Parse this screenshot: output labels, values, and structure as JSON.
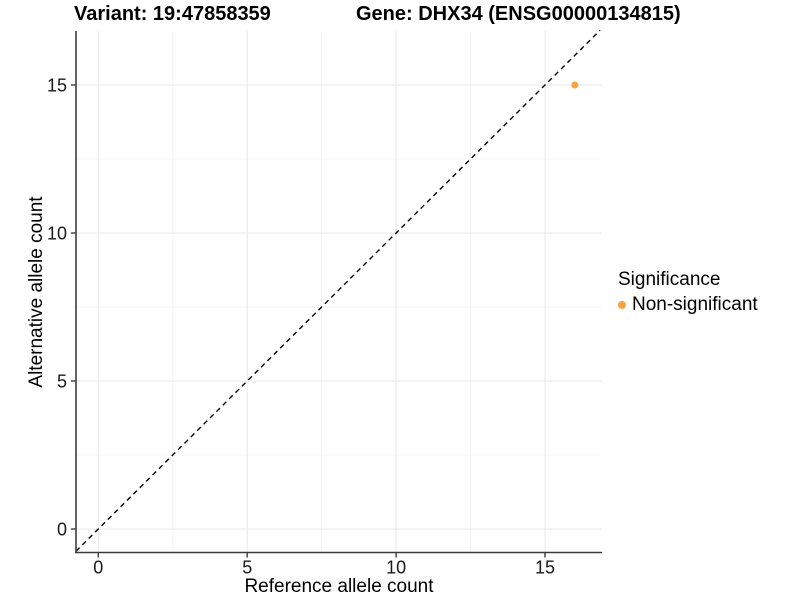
{
  "title": {
    "variant": "Variant: 19:47858359",
    "gene": "Gene: DHX34 (ENSG00000134815)"
  },
  "x_axis": {
    "label": "Reference allele count"
  },
  "y_axis": {
    "label": "Alternative allele count"
  },
  "legend": {
    "title": "Significance",
    "items": [
      {
        "label": "Non-significant",
        "color": "#F9A242"
      }
    ]
  },
  "chart_data": {
    "type": "scatter",
    "title": "Variant: 19:47858359    Gene: DHX34 (ENSG00000134815)",
    "xlabel": "Reference allele count",
    "ylabel": "Alternative allele count",
    "x_ticks": [
      0,
      5,
      10,
      15
    ],
    "y_ticks": [
      0,
      5,
      10,
      15
    ],
    "xlim": [
      -0.75,
      16.85
    ],
    "ylim": [
      -0.75,
      16.85
    ],
    "grid": "major+minor",
    "legend_position": "right",
    "series": [
      {
        "name": "Non-significant",
        "color": "#F9A242",
        "points": [
          {
            "x": 16,
            "y": 15
          }
        ]
      }
    ],
    "reference_line": {
      "type": "identity y=x",
      "style": "dashed",
      "color": "#000000"
    },
    "colors": {
      "grid_major": "#e8e8e8",
      "grid_minor": "#f4f4f4",
      "axis_line": "#3c3c3c",
      "tick_text": "#1a1a1a"
    }
  }
}
